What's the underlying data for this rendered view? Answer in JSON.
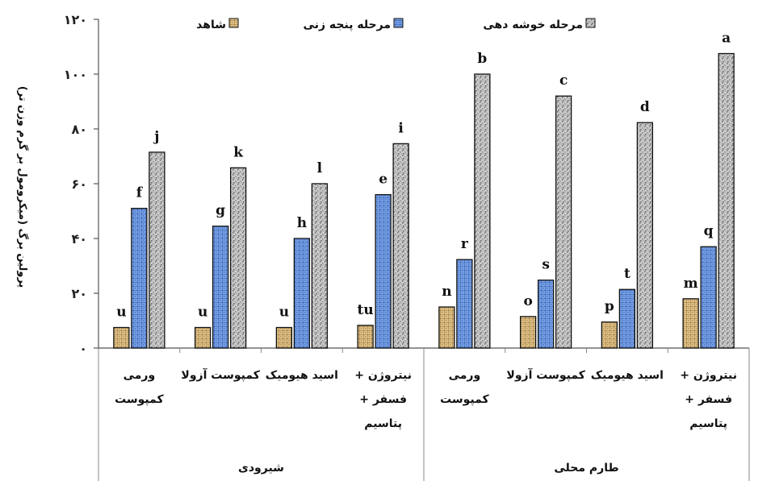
{
  "chart_data": {
    "type": "bar",
    "ylabel": "پرولین برگ (میکرومول بر گرم وزن تر)",
    "ylim": [
      0,
      120
    ],
    "y_ticks": [
      {
        "value": 0,
        "label": "۰"
      },
      {
        "value": 20,
        "label": "۲۰"
      },
      {
        "value": 40,
        "label": "۴۰"
      },
      {
        "value": 60,
        "label": "۶۰"
      },
      {
        "value": 80,
        "label": "۸۰"
      },
      {
        "value": 100,
        "label": "۱۰۰"
      },
      {
        "value": 120,
        "label": "۱۲۰"
      }
    ],
    "categories": [
      [
        "ورمی",
        "کمپوست"
      ],
      [
        "کمپوست آزولا"
      ],
      [
        "اسید هیومیک"
      ],
      [
        "نیتروژن +",
        "فسفر +",
        "پتاسیم"
      ],
      [
        "ورمی",
        "کمپوست"
      ],
      [
        "کمپوست آزولا"
      ],
      [
        "اسید هیومیک"
      ],
      [
        "نیتروژن +",
        "فسفر +",
        "پتاسیم"
      ]
    ],
    "groups": [
      {
        "label": "شیرودی",
        "span": [
          0,
          3
        ]
      },
      {
        "label": "طارم محلی",
        "span": [
          4,
          7
        ]
      }
    ],
    "series": [
      {
        "name": "شاهد",
        "color": "#d9b77a",
        "pattern": "tan-grid",
        "values": [
          7.5,
          7.5,
          7.5,
          8.3,
          15,
          11.5,
          9.5,
          18
        ],
        "letters": [
          "u",
          "u",
          "u",
          "tu",
          "n",
          "o",
          "p",
          "m"
        ]
      },
      {
        "name": "مرحله پنجه زنی",
        "color": "#5b86d4",
        "pattern": "blue-grid",
        "values": [
          51,
          44.5,
          40,
          56,
          32.3,
          24.8,
          21.4,
          37
        ],
        "letters": [
          "f",
          "g",
          "h",
          "e",
          "r",
          "s",
          "t",
          "q"
        ]
      },
      {
        "name": "مرحله خوشه دهی",
        "color": "#a8a8a8",
        "pattern": "gray-speckle",
        "values": [
          71.5,
          65.8,
          60,
          74.6,
          100,
          92,
          82.3,
          107.5
        ],
        "letters": [
          "j",
          "k",
          "l",
          "i",
          "b",
          "c",
          "d",
          "a"
        ]
      }
    ],
    "legend": {
      "placement": "top",
      "order": [
        2,
        1,
        0
      ]
    },
    "grid": false
  }
}
